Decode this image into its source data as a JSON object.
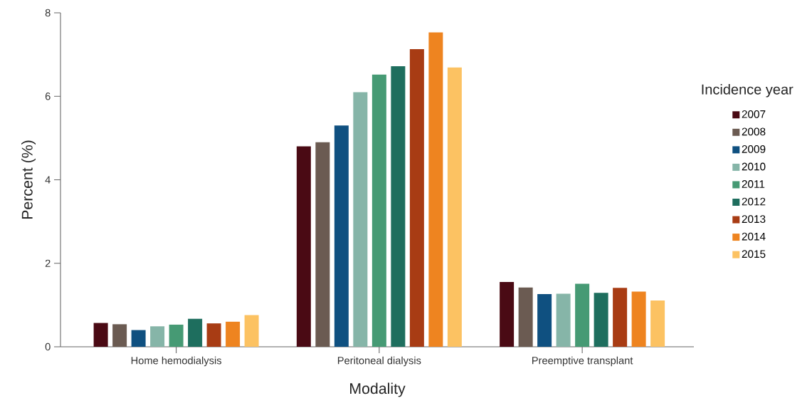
{
  "chart_data": {
    "type": "bar",
    "xlabel": "Modality",
    "ylabel": "Percent (%)",
    "legend_title": "Incidence year",
    "legend": "right",
    "grid": false,
    "categories": [
      "Home hemodialysis",
      "Peritoneal dialysis",
      "Preemptive transplant"
    ],
    "ylim": [
      0,
      8
    ],
    "yticks": [
      0,
      2,
      4,
      6,
      8
    ],
    "series": [
      {
        "name": "2007",
        "color": "#4a0a14",
        "values": [
          0.57,
          4.8,
          1.55
        ]
      },
      {
        "name": "2008",
        "color": "#6b5b52",
        "values": [
          0.54,
          4.9,
          1.42
        ]
      },
      {
        "name": "2009",
        "color": "#0f5080",
        "values": [
          0.4,
          5.3,
          1.26
        ]
      },
      {
        "name": "2010",
        "color": "#86b5a8",
        "values": [
          0.49,
          6.1,
          1.27
        ]
      },
      {
        "name": "2011",
        "color": "#469a74",
        "values": [
          0.53,
          6.52,
          1.51
        ]
      },
      {
        "name": "2012",
        "color": "#1e6e5e",
        "values": [
          0.67,
          6.72,
          1.29
        ]
      },
      {
        "name": "2013",
        "color": "#a83c14",
        "values": [
          0.56,
          7.13,
          1.41
        ]
      },
      {
        "name": "2014",
        "color": "#ee8420",
        "values": [
          0.6,
          7.53,
          1.32
        ]
      },
      {
        "name": "2015",
        "color": "#fcc262",
        "values": [
          0.76,
          6.69,
          1.11
        ]
      }
    ]
  }
}
